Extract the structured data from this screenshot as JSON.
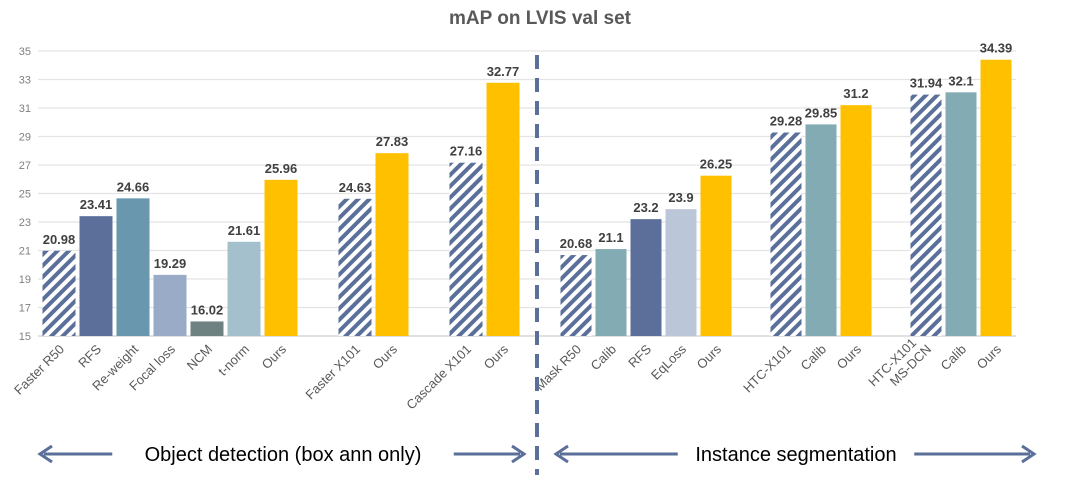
{
  "chart_data": {
    "type": "bar",
    "title": "mAP on LVIS val set",
    "xlabel": "",
    "ylabel": "",
    "ylim": [
      15,
      35
    ],
    "yticks": [
      15,
      17,
      19,
      21,
      23,
      25,
      27,
      29,
      31,
      33,
      35
    ],
    "grid": true,
    "legend": "none",
    "sections": [
      {
        "label": "Object detection (box ann only)",
        "groups": [
          {
            "bars": [
              {
                "category": "Faster R50",
                "value": 20.98,
                "label": "20.98",
                "color": "#5a6f9a",
                "hatched": true
              },
              {
                "category": "RFS",
                "value": 23.41,
                "label": "23.41",
                "color": "#5b6f9a"
              },
              {
                "category": "Re-weight",
                "value": 24.66,
                "label": "24.66",
                "color": "#6897ae"
              },
              {
                "category": "Focal loss",
                "value": 19.29,
                "label": "19.29",
                "color": "#9aabc7"
              },
              {
                "category": "NCM",
                "value": 16.02,
                "label": "16.02",
                "color": "#6e8282"
              },
              {
                "category": "t-norm",
                "value": 21.61,
                "label": "21.61",
                "color": "#a3c0cc"
              },
              {
                "category": "Ours",
                "value": 25.96,
                "label": "25.96",
                "color": "#ffc000"
              }
            ]
          },
          {
            "bars": [
              {
                "category": "Faster X101",
                "value": 24.63,
                "label": "24.63",
                "color": "#5a6f9a",
                "hatched": true
              },
              {
                "category": "Ours",
                "value": 27.83,
                "label": "27.83",
                "color": "#ffc000"
              }
            ]
          },
          {
            "bars": [
              {
                "category": "Cascade X101",
                "value": 27.16,
                "label": "27.16",
                "color": "#5a6f9a",
                "hatched": true
              },
              {
                "category": "Ours",
                "value": 32.77,
                "label": "32.77",
                "color": "#ffc000"
              }
            ]
          }
        ]
      },
      {
        "label": "Instance segmentation",
        "groups": [
          {
            "bars": [
              {
                "category": "Mask R50",
                "value": 20.68,
                "label": "20.68",
                "color": "#5a6f9a",
                "hatched": true
              },
              {
                "category": "Calib",
                "value": 21.1,
                "label": "21.1",
                "color": "#83abb4"
              },
              {
                "category": "RFS",
                "value": 23.2,
                "label": "23.2",
                "color": "#5b6f9a"
              },
              {
                "category": "EqLoss",
                "value": 23.9,
                "label": "23.9",
                "color": "#bcc6d9"
              },
              {
                "category": "Ours",
                "value": 26.25,
                "label": "26.25",
                "color": "#ffc000"
              }
            ]
          },
          {
            "bars": [
              {
                "category": "HTC-X101",
                "value": 29.28,
                "label": "29.28",
                "color": "#5a6f9a",
                "hatched": true
              },
              {
                "category": "Calib",
                "value": 29.85,
                "label": "29.85",
                "color": "#83abb4"
              },
              {
                "category": "Ours",
                "value": 31.2,
                "label": "31.2",
                "color": "#ffc000"
              }
            ]
          },
          {
            "bars": [
              {
                "category": "HTC-X101\nMS-DCN",
                "value": 31.94,
                "label": "31.94",
                "color": "#5a6f9a",
                "hatched": true
              },
              {
                "category": "Calib",
                "value": 32.1,
                "label": "32.1",
                "color": "#83abb4"
              },
              {
                "category": "Ours",
                "value": 34.39,
                "label": "34.39",
                "color": "#ffc000"
              }
            ]
          }
        ]
      }
    ],
    "divider_color": "#5a6f9a",
    "arrow_color": "#5a6f9a"
  }
}
